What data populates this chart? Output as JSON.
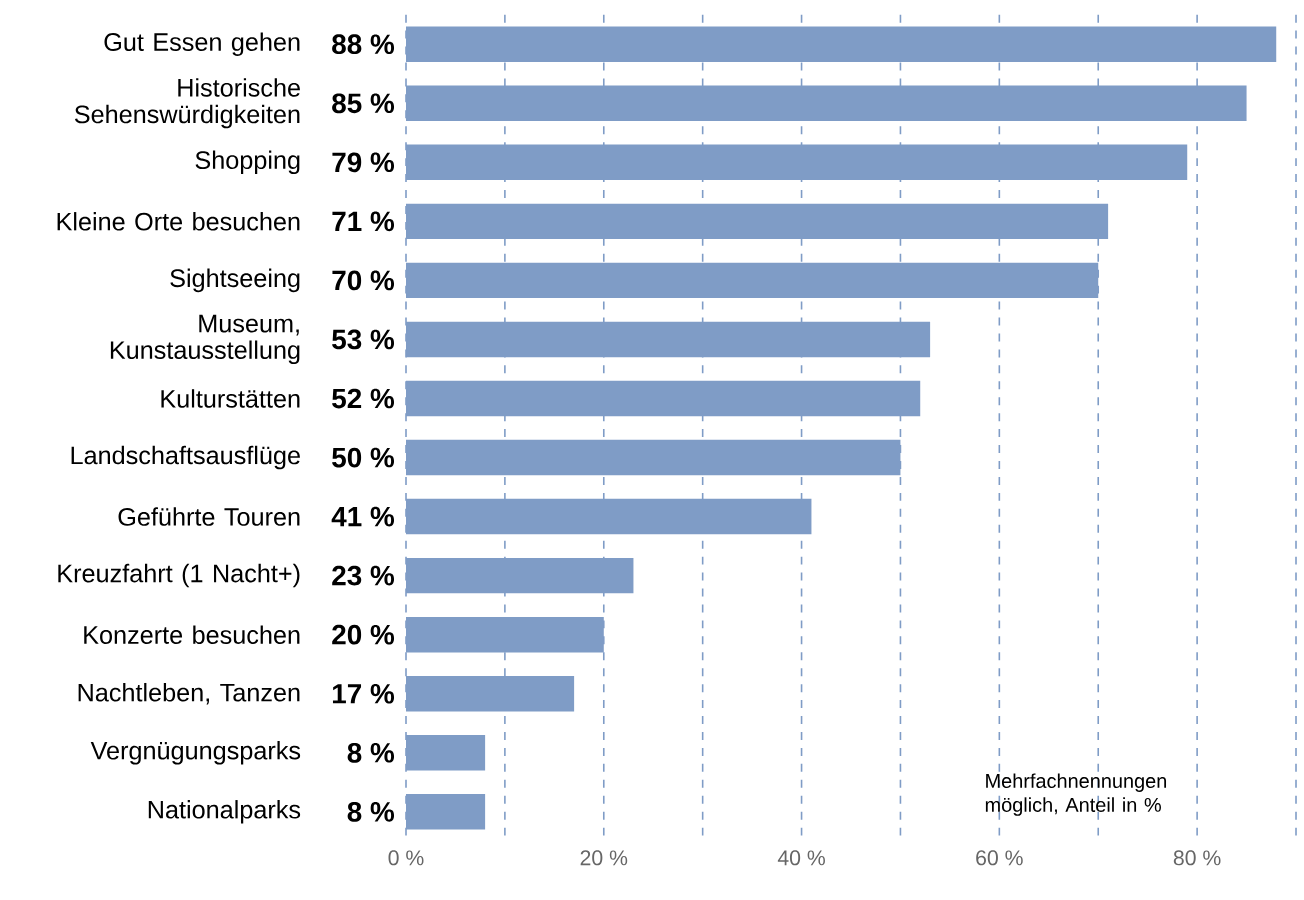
{
  "chart_data": {
    "type": "bar",
    "orientation": "horizontal",
    "categories": [
      "Gut Essen gehen",
      "Historische Sehenswürdigkeiten",
      "Shopping",
      "Kleine Orte besuchen",
      "Sightseeing",
      "Museum, Kunstausstellung",
      "Kulturstätten",
      "Landschaftsausflüge",
      "Geführte Touren",
      "Kreuzfahrt (1 Nacht+)",
      "Konzerte besuchen",
      "Nachtleben, Tanzen",
      "Vergnügungsparks",
      "Nationalparks"
    ],
    "values": [
      88,
      85,
      79,
      71,
      70,
      53,
      52,
      50,
      41,
      23,
      20,
      17,
      8,
      8
    ],
    "value_labels": [
      "88 %",
      "85 %",
      "79 %",
      "71 %",
      "70 %",
      "53 %",
      "52 %",
      "50 %",
      "41 %",
      "23 %",
      "20 %",
      "17 %",
      "8 %",
      "8 %"
    ],
    "color": "#7f9cc6",
    "xlim": [
      0,
      90
    ],
    "xticks": [
      {
        "value": 0,
        "label": "0 %"
      },
      {
        "value": 10,
        "label": null
      },
      {
        "value": 20,
        "label": "20 %"
      },
      {
        "value": 30,
        "label": null
      },
      {
        "value": 40,
        "label": "40 %"
      },
      {
        "value": 50,
        "label": null
      },
      {
        "value": 60,
        "label": "60 %"
      },
      {
        "value": 70,
        "label": null
      },
      {
        "value": 80,
        "label": "80 %"
      },
      {
        "value": 90,
        "label": null
      }
    ],
    "grid": "x",
    "annotations": [
      "Mehrfachnennungen möglich, Anteil in %"
    ]
  }
}
